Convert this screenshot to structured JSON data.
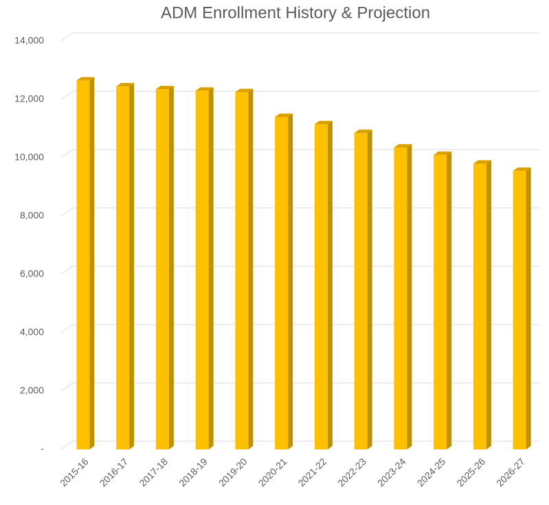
{
  "chart_data": {
    "type": "bar",
    "title": "ADM Enrollment History & Projection",
    "categories": [
      "2015-16",
      "2016-17",
      "2017-18",
      "2018-19",
      "2019-20",
      "2020-21",
      "2021-22",
      "2022-23",
      "2023-24",
      "2024-25",
      "2025-26",
      "2026-27"
    ],
    "values": [
      12650,
      12450,
      12350,
      12300,
      12250,
      11400,
      11150,
      10850,
      10350,
      10100,
      9800,
      9550
    ],
    "color": "#ffc000",
    "ylim": [
      0,
      14000
    ],
    "yticks": [
      {
        "value": 0,
        "label": "-"
      },
      {
        "value": 2000,
        "label": "2,000"
      },
      {
        "value": 4000,
        "label": "4,000"
      },
      {
        "value": 6000,
        "label": "6,000"
      },
      {
        "value": 8000,
        "label": "8,000"
      },
      {
        "value": 10000,
        "label": "10,000"
      },
      {
        "value": 12000,
        "label": "12,000"
      },
      {
        "value": 14000,
        "label": "14,000"
      }
    ],
    "grid": true
  }
}
